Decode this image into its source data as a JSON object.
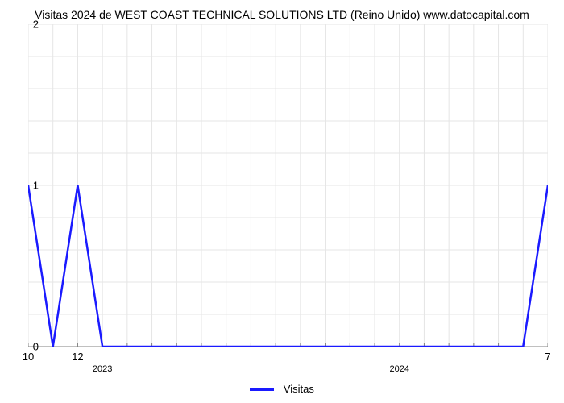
{
  "chart": {
    "type": "line",
    "title": "Visitas 2024 de WEST COAST TECHNICAL SOLUTIONS LTD (Reino Unido) www.datocapital.com",
    "title_fontsize": 14,
    "background_color": "#ffffff",
    "grid_color": "#e5e5e5",
    "axis_color": "#808080",
    "y_axis": {
      "min": 0,
      "max": 2,
      "labels": [
        "0",
        "1",
        "2"
      ],
      "positions": [
        0,
        1,
        2
      ],
      "minor_ticks": 4,
      "fontsize": 13
    },
    "x_axis": {
      "major_labels": [
        "10",
        "12",
        "7"
      ],
      "major_positions": [
        0,
        2,
        21
      ],
      "year_labels": [
        "2023",
        "2024"
      ],
      "year_positions": [
        3,
        15
      ],
      "total_months": 21,
      "fontsize": 13
    },
    "series": {
      "name": "Visitas",
      "color": "#1a1aff",
      "line_width": 2.5,
      "data_x": [
        0,
        1,
        2,
        3,
        4,
        5,
        6,
        7,
        8,
        9,
        10,
        11,
        12,
        13,
        14,
        15,
        16,
        17,
        18,
        19,
        20,
        21
      ],
      "data_y": [
        1,
        0,
        1,
        0,
        0,
        0,
        0,
        0,
        0,
        0,
        0,
        0,
        0,
        0,
        0,
        0,
        0,
        0,
        0,
        0,
        0,
        1
      ]
    },
    "legend": {
      "label": "Visitas",
      "fontsize": 13
    }
  }
}
